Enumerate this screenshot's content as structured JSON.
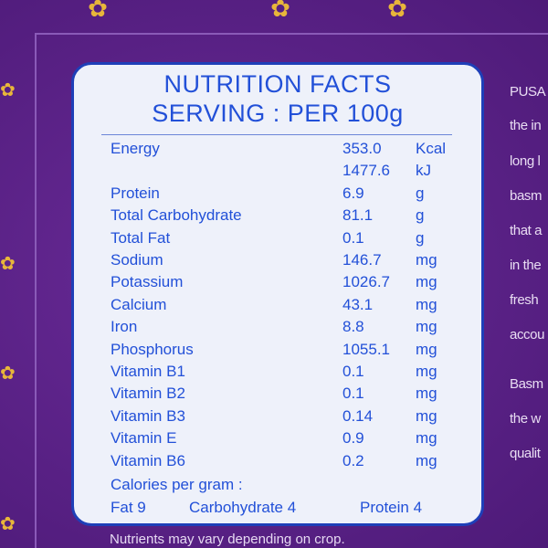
{
  "panel": {
    "title": "NUTRITION FACTS",
    "serving": "SERVING  : PER 100g",
    "rows": [
      {
        "name": "Energy",
        "value": "353.0",
        "unit": "Kcal"
      },
      {
        "name": "",
        "value": "1477.6",
        "unit": "kJ"
      },
      {
        "name": "Protein",
        "value": "6.9",
        "unit": "g"
      },
      {
        "name": "Total Carbohydrate",
        "value": "81.1",
        "unit": "g"
      },
      {
        "name": "Total Fat",
        "value": "0.1",
        "unit": "g"
      },
      {
        "name": "Sodium",
        "value": "146.7",
        "unit": "mg"
      },
      {
        "name": "Potassium",
        "value": "1026.7",
        "unit": "mg"
      },
      {
        "name": "Calcium",
        "value": "43.1",
        "unit": "mg"
      },
      {
        "name": "Iron",
        "value": "8.8",
        "unit": "mg"
      },
      {
        "name": "Phosphorus",
        "value": "1055.1",
        "unit": "mg"
      },
      {
        "name": "Vitamin B1",
        "value": "0.1",
        "unit": "mg"
      },
      {
        "name": "Vitamin B2",
        "value": "0.1",
        "unit": "mg"
      },
      {
        "name": "Vitamin B3",
        "value": "0.14",
        "unit": "mg"
      },
      {
        "name": "Vitamin E",
        "value": "0.9",
        "unit": "mg"
      },
      {
        "name": "Vitamin B6",
        "value": "0.2",
        "unit": "mg"
      }
    ],
    "calories_label": "Calories per gram :",
    "fat": "Fat  9",
    "carb": "Carbohydrate  4",
    "protein": "Protein  4"
  },
  "footer": "Nutrients may vary depending on crop.",
  "side_text": [
    "PUSA",
    "the in",
    "long l",
    "basm",
    "that a",
    "in the",
    "fresh",
    "accou",
    "Basm",
    "the w",
    "qualit"
  ],
  "colors": {
    "background": "#5b2188",
    "panel": "#eef1fa",
    "text": "#2250d8",
    "flowers": "#e8b63a"
  }
}
